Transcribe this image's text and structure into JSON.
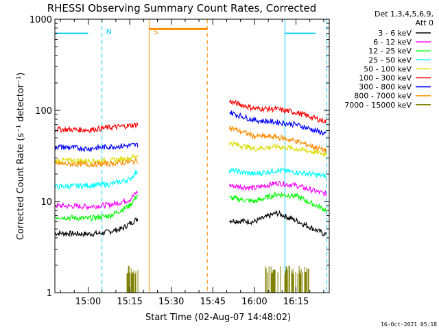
{
  "chart_data": {
    "type": "line",
    "title": "RHESSI Observing Summary Count Rates, Corrected",
    "xlabel": "Start Time (02-Aug-07 14:48:02)",
    "ylabel": "Corrected Count Rate (s⁻¹ detector⁻¹)",
    "y_scale": "log",
    "ylim": [
      1,
      1000
    ],
    "y_ticks": [
      "1",
      "10",
      "100",
      "1000"
    ],
    "xlim": [
      "14:48",
      "16:27"
    ],
    "x_ticks": [
      "15:00",
      "15:15",
      "15:30",
      "15:45",
      "16:00",
      "16:15"
    ],
    "legend_header": [
      "Det 1,3,4,5,6,9,",
      "Att 0"
    ],
    "legend_position": "right",
    "series": [
      {
        "name": "3 - 6 keV",
        "color": "#000000",
        "segments": [
          {
            "x": [
              "14:48",
              "15:00",
              "15:05",
              "15:12",
              "15:18"
            ],
            "y": [
              4.5,
              4.4,
              4.5,
              5.0,
              6.5
            ]
          },
          {
            "x": [
              "15:51",
              "16:00",
              "16:08",
              "16:15",
              "16:26"
            ],
            "y": [
              6.2,
              6.0,
              7.5,
              6.2,
              4.3
            ]
          }
        ]
      },
      {
        "name": "6 - 12 keV",
        "color": "#ff00ff",
        "segments": [
          {
            "x": [
              "14:48",
              "15:00",
              "15:08",
              "15:15",
              "15:18"
            ],
            "y": [
              9.0,
              8.8,
              9.2,
              10.5,
              13.0
            ]
          },
          {
            "x": [
              "15:51",
              "16:00",
              "16:08",
              "16:15",
              "16:26"
            ],
            "y": [
              15.0,
              14.0,
              16.0,
              15.0,
              12.0
            ]
          }
        ]
      },
      {
        "name": "12 - 25 keV",
        "color": "#00ff00",
        "segments": [
          {
            "x": [
              "14:48",
              "15:00",
              "15:08",
              "15:15",
              "15:18"
            ],
            "y": [
              6.8,
              6.5,
              7.0,
              9.0,
              12.0
            ]
          },
          {
            "x": [
              "15:51",
              "16:00",
              "16:08",
              "16:15",
              "16:26"
            ],
            "y": [
              11.0,
              10.0,
              12.0,
              11.5,
              8.0
            ]
          }
        ]
      },
      {
        "name": "25 - 50 keV",
        "color": "#00ffff",
        "segments": [
          {
            "x": [
              "14:48",
              "15:00",
              "15:08",
              "15:15",
              "15:18"
            ],
            "y": [
              14.5,
              15.0,
              15.5,
              17.5,
              22.0
            ]
          },
          {
            "x": [
              "15:51",
              "16:00",
              "16:08",
              "16:15",
              "16:26"
            ],
            "y": [
              22.0,
              20.0,
              22.0,
              21.0,
              19.0
            ]
          }
        ]
      },
      {
        "name": "50 - 100 keV",
        "color": "#dddd00",
        "segments": [
          {
            "x": [
              "14:48",
              "15:00",
              "15:08",
              "15:15",
              "15:18"
            ],
            "y": [
              28.0,
              28.0,
              28.0,
              30.0,
              32.0
            ]
          },
          {
            "x": [
              "15:51",
              "16:00",
              "16:08",
              "16:15",
              "16:26"
            ],
            "y": [
              44.0,
              38.0,
              40.0,
              38.0,
              33.0
            ]
          }
        ]
      },
      {
        "name": "100 - 300 keV",
        "color": "#ff0000",
        "segments": [
          {
            "x": [
              "14:48",
              "15:00",
              "15:08",
              "15:15",
              "15:18"
            ],
            "y": [
              62.0,
              61.0,
              65.0,
              68.0,
              70.0
            ]
          },
          {
            "x": [
              "15:51",
              "16:00",
              "16:08",
              "16:15",
              "16:26"
            ],
            "y": [
              125.0,
              105.0,
              103.0,
              95.0,
              75.0
            ]
          }
        ]
      },
      {
        "name": "300 - 800 keV",
        "color": "#0000ff",
        "segments": [
          {
            "x": [
              "14:48",
              "15:00",
              "15:08",
              "15:15",
              "15:18"
            ],
            "y": [
              40.0,
              38.0,
              40.0,
              41.0,
              42.0
            ]
          },
          {
            "x": [
              "15:51",
              "16:00",
              "16:08",
              "16:15",
              "16:26"
            ],
            "y": [
              95.0,
              78.0,
              74.0,
              70.0,
              55.0
            ]
          }
        ]
      },
      {
        "name": "800 - 7000 keV",
        "color": "#ff8c00",
        "segments": [
          {
            "x": [
              "14:48",
              "15:00",
              "15:08",
              "15:15",
              "15:18"
            ],
            "y": [
              26.0,
              25.5,
              26.0,
              27.0,
              28.0
            ]
          },
          {
            "x": [
              "15:51",
              "16:00",
              "16:08",
              "16:15",
              "16:26"
            ],
            "y": [
              65.0,
              52.0,
              51.0,
              46.0,
              36.0
            ]
          }
        ]
      },
      {
        "name": "7000 - 15000 keV",
        "color": "#808000",
        "segments": [
          {
            "x": [
              "15:14",
              "15:15",
              "15:16",
              "15:17",
              "15:18"
            ],
            "y": [
              1.0,
              2.0,
              1.0,
              1.8,
              1.0
            ]
          },
          {
            "x": [
              "16:04",
              "16:08",
              "16:12",
              "16:16",
              "16:20"
            ],
            "y": [
              1.0,
              2.0,
              1.0,
              2.0,
              1.0
            ]
          }
        ]
      }
    ],
    "annotations": [
      {
        "text": "N",
        "x": "15:05",
        "color": "#00ccff"
      },
      {
        "text": "S",
        "x": "15:22",
        "color": "#ff8c00"
      }
    ],
    "flag_bars": [
      {
        "label": "N",
        "color": "#00ccff",
        "style": "solid",
        "x": [
          "14:48",
          "15:00"
        ],
        "y": 700
      },
      {
        "label": "N",
        "color": "#00ccff",
        "style": "solid",
        "x": [
          "16:11",
          "16:22"
        ],
        "y": 700
      },
      {
        "label": "S",
        "color": "#ff8c00",
        "style": "thick",
        "x": [
          "15:22",
          "15:43"
        ],
        "y": 780
      }
    ],
    "vertical_markers": [
      {
        "x": "15:05",
        "color": "#00ccff",
        "style": "dashed"
      },
      {
        "x": "15:22",
        "color": "#ff8c00",
        "style": "solid"
      },
      {
        "x": "15:43",
        "color": "#ff8c00",
        "style": "dashed"
      },
      {
        "x": "16:11",
        "color": "#00ccff",
        "style": "solid"
      },
      {
        "x": "16:26",
        "color": "#00ccff",
        "style": "dashed"
      }
    ]
  },
  "footer": {
    "timestamp": "16-Oct-2021 05:18"
  }
}
